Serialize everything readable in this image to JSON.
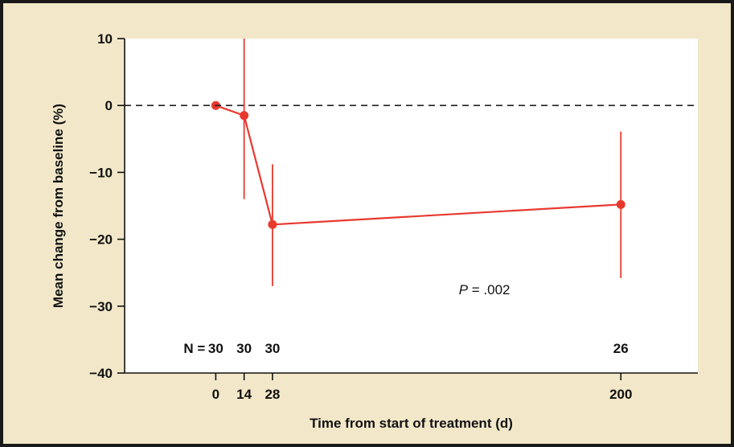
{
  "chart_data": {
    "type": "line",
    "xlabel": "Time from start of treatment (d)",
    "ylabel": "Mean change from baseline (%)",
    "xlim": [
      -45,
      238
    ],
    "ylim": [
      -40,
      10
    ],
    "x_ticks": [
      0,
      14,
      28,
      200
    ],
    "y_ticks": [
      10,
      0,
      -10,
      -20,
      -30,
      -40
    ],
    "y_tick_labels": [
      "10",
      "0",
      "−10",
      "−20",
      "−30",
      "−40"
    ],
    "reference_line": {
      "y": 0,
      "style": "dashed"
    },
    "series": [
      {
        "points": [
          {
            "x": 0,
            "y": 0,
            "err_low": 0,
            "err_high": 0
          },
          {
            "x": 14,
            "y": -1.5,
            "err_low": -14,
            "err_high": 10
          },
          {
            "x": 28,
            "y": -17.8,
            "err_low": -27,
            "err_high": -8.8
          },
          {
            "x": 200,
            "y": -14.8,
            "err_low": -25.8,
            "err_high": -3.9
          }
        ]
      }
    ],
    "n_label": "N =",
    "n_values": [
      {
        "x": 0,
        "label": "30"
      },
      {
        "x": 14,
        "label": "30"
      },
      {
        "x": 28,
        "label": "30"
      },
      {
        "x": 200,
        "label": "26"
      }
    ],
    "annotation": {
      "italic": "P",
      "rest": " = .002",
      "x": 120,
      "y": -27.5
    },
    "colors": {
      "series": "#e8392f",
      "frame_bg": "#f2e8c9",
      "plot_bg": "#ffffff",
      "text": "#111111"
    },
    "grid": false
  }
}
